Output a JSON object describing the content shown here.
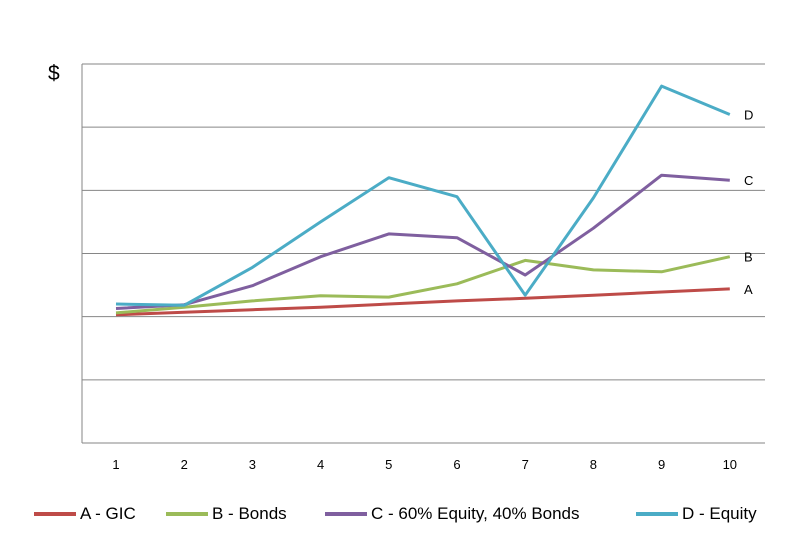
{
  "chart_data": {
    "type": "line",
    "ylabel": "$",
    "categories": [
      "1",
      "2",
      "3",
      "4",
      "5",
      "6",
      "7",
      "8",
      "9",
      "10"
    ],
    "ylim": [
      0,
      6
    ],
    "y_tick_count": 6,
    "y_tick_labels_shown": false,
    "grid": "horizontal",
    "legend_position": "bottom",
    "series": [
      {
        "name": "A - GIC",
        "end_label": "A",
        "color": "#be4b48",
        "values": [
          2.03,
          2.07,
          2.11,
          2.15,
          2.2,
          2.25,
          2.29,
          2.34,
          2.39,
          2.44
        ]
      },
      {
        "name": "B - Bonds",
        "end_label": "B",
        "color": "#9bbb59",
        "values": [
          2.06,
          2.15,
          2.25,
          2.33,
          2.31,
          2.52,
          2.89,
          2.74,
          2.71,
          2.95
        ]
      },
      {
        "name": "C - 60% Equity, 40% Bonds",
        "end_label": "C",
        "color": "#7f5f9f",
        "values": [
          2.13,
          2.19,
          2.49,
          2.95,
          3.31,
          3.25,
          2.66,
          3.4,
          4.24,
          4.16
        ]
      },
      {
        "name": "D - Equity",
        "end_label": "D",
        "color": "#4bacc6",
        "values": [
          2.2,
          2.18,
          2.78,
          3.5,
          4.2,
          3.9,
          2.34,
          3.88,
          5.65,
          5.2
        ]
      }
    ]
  }
}
